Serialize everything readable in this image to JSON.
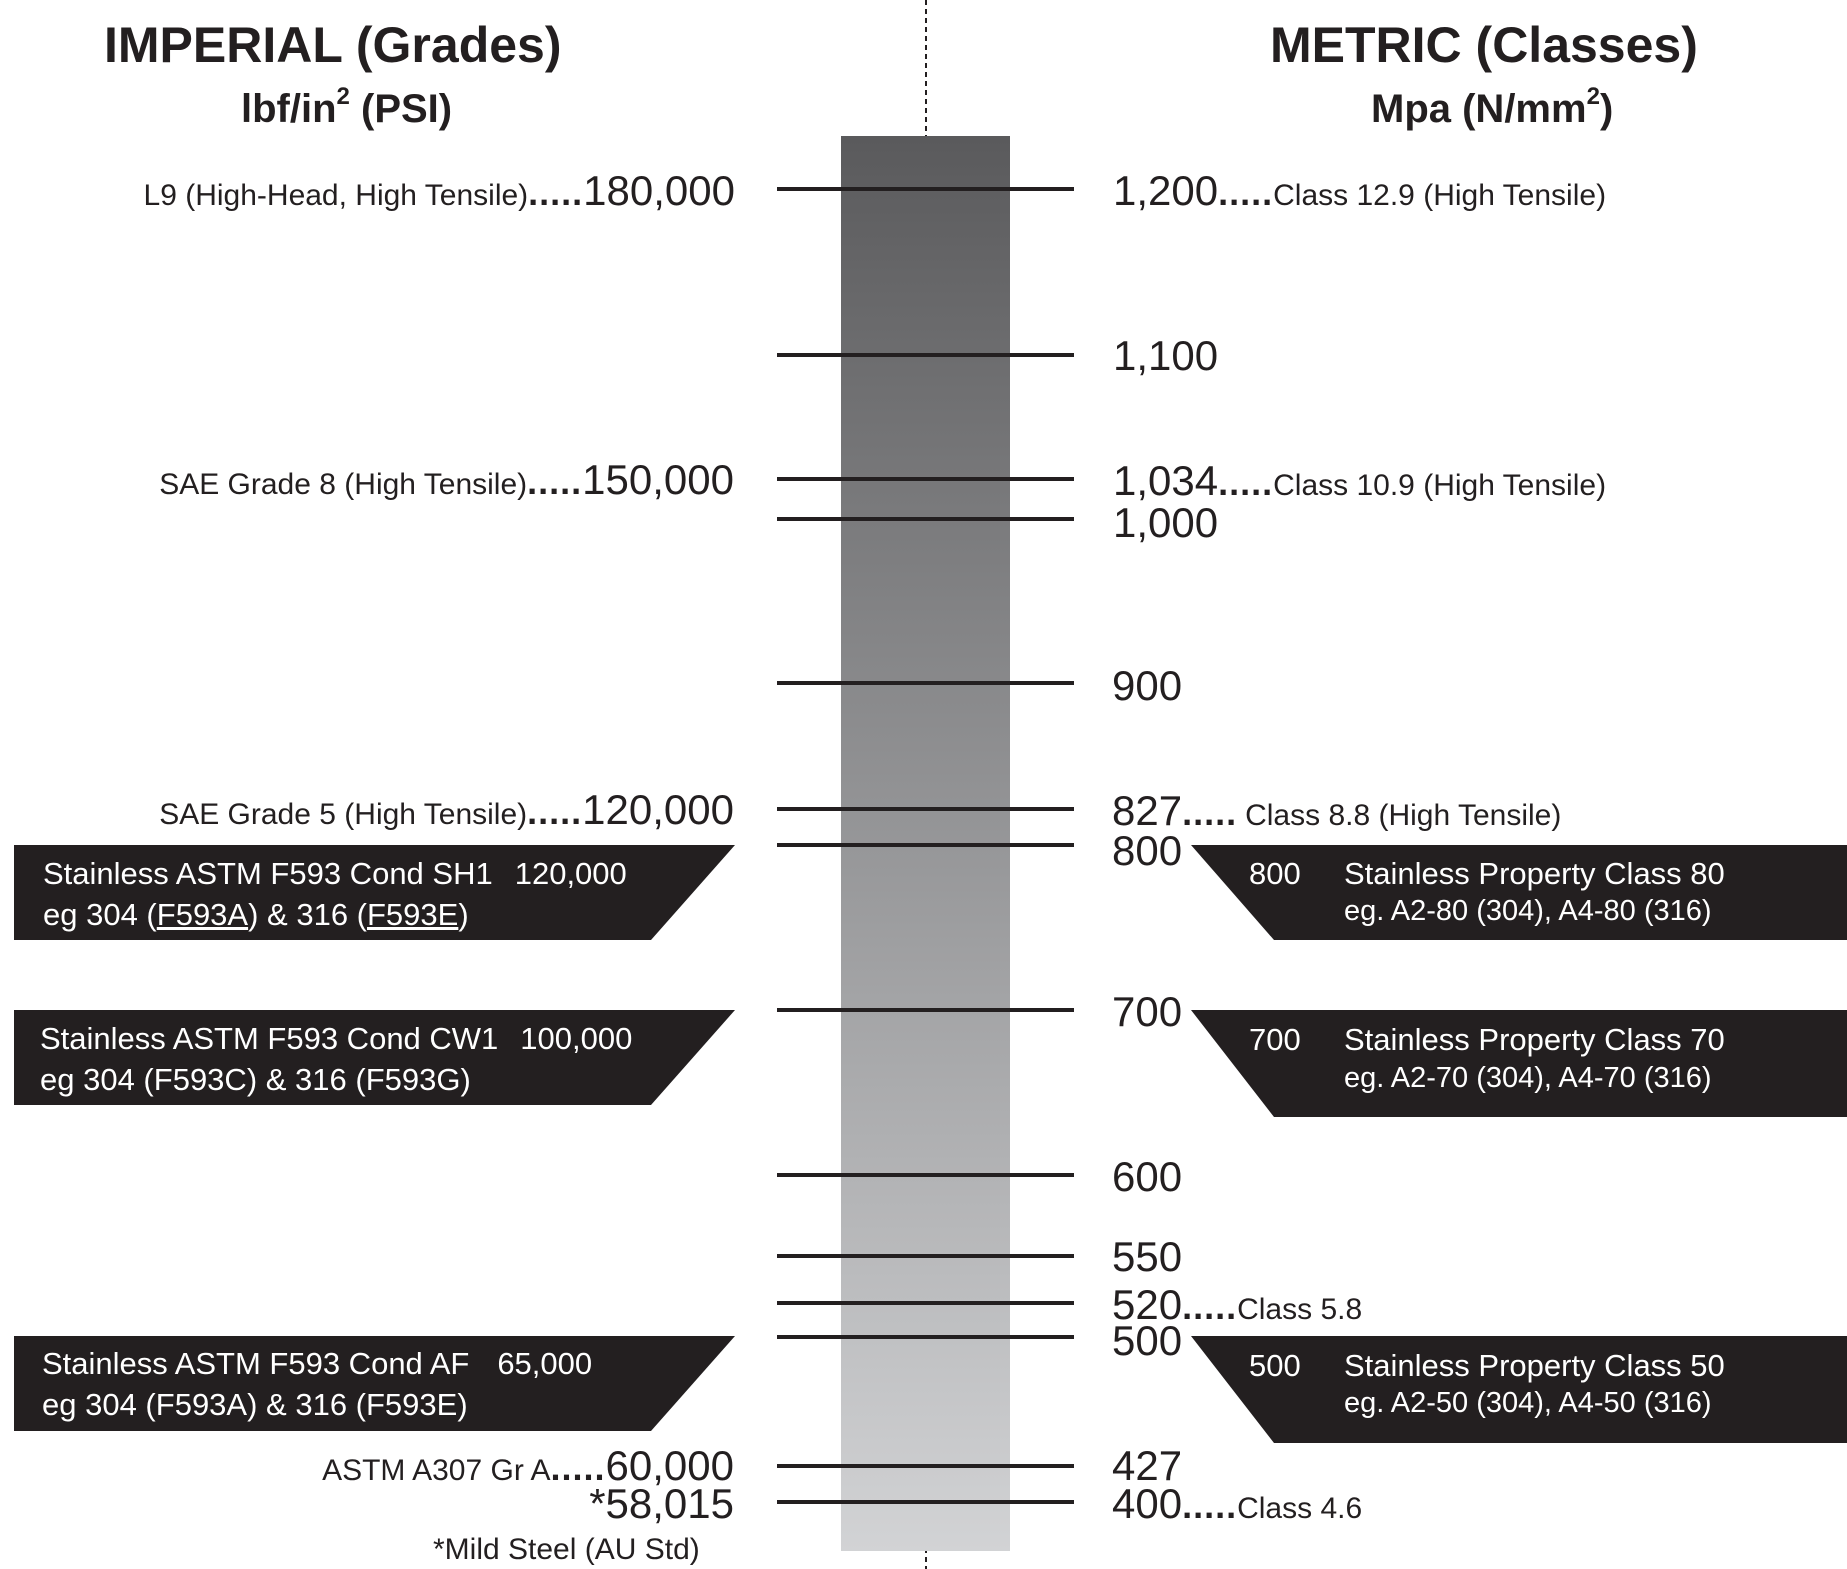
{
  "left_header": {
    "title": "IMPERIAL (Grades)",
    "unit_text": "lbf/in",
    "unit_sup": "2",
    "unit_suffix": " (PSI)"
  },
  "right_header": {
    "title": "METRIC (Classes)",
    "unit_text": "Mpa (N/mm",
    "unit_sup": "2",
    "unit_suffix": ")"
  },
  "scale_ticks": [
    "1,200",
    "1,100",
    "1,034",
    "1,000",
    "900",
    "827",
    "800",
    "700",
    "600",
    "550",
    "520",
    "500",
    "427",
    "400"
  ],
  "imperial_grades": [
    {
      "name": "L9 (High-Head, High Tensile)",
      "dots": ".....",
      "psi": "180,000",
      "mpa_tick": "1,200"
    },
    {
      "name": "SAE Grade 8 (High Tensile)",
      "dots": ".....",
      "psi": "150,000",
      "mpa_tick": "1,034"
    },
    {
      "name": "SAE Grade 5 (High Tensile)",
      "dots": ".....",
      "psi": "120,000",
      "mpa_tick": "827"
    },
    {
      "name": "ASTM A307 Gr A",
      "dots": ".....",
      "psi": "60,000",
      "mpa_tick": "427"
    },
    {
      "name": "",
      "dots": "",
      "psi": "*58,015",
      "mpa_tick": "400"
    }
  ],
  "metric_classes": [
    {
      "value": "1,200",
      "dots": ".....",
      "name": "Class 12.9 (High Tensile)"
    },
    {
      "value": "1,100",
      "dots": "",
      "name": ""
    },
    {
      "value": "1,034",
      "dots": ".....",
      "name": "Class 10.9 (High Tensile)"
    },
    {
      "value": "1,000",
      "dots": "",
      "name": ""
    },
    {
      "value": "900",
      "dots": "",
      "name": ""
    },
    {
      "value": "827",
      "dots": ".....",
      "name": "Class 8.8 (High Tensile)"
    },
    {
      "value": "800",
      "dots": "",
      "name": ""
    },
    {
      "value": "700",
      "dots": "",
      "name": ""
    },
    {
      "value": "600",
      "dots": "",
      "name": ""
    },
    {
      "value": "550",
      "dots": "",
      "name": ""
    },
    {
      "value": "520",
      "dots": ".....",
      "name": "Class 5.8"
    },
    {
      "value": "500",
      "dots": "",
      "name": ""
    },
    {
      "value": "427",
      "dots": "",
      "name": ""
    },
    {
      "value": "400",
      "dots": ".....",
      "name": "Class 4.6"
    }
  ],
  "stainless_imperial": [
    {
      "line1": "Stainless ASTM F593 Cond SH1",
      "psi": "120,000",
      "pre": "eg 304 (",
      "code_a": "F593A",
      "mid": ") & 316 (",
      "code_b": "F593E",
      "post": ")",
      "underlined": true,
      "mpa_tick": "800"
    },
    {
      "line1": "Stainless ASTM F593 Cond CW1",
      "psi": "100,000",
      "pre": "eg 304 (",
      "code_a": "F593C",
      "mid": ") & 316 (",
      "code_b": "F593G",
      "post": ")",
      "underlined": false,
      "mpa_tick": "700"
    },
    {
      "line1": "Stainless ASTM F593 Cond AF",
      "psi": "65,000",
      "pre": "eg 304 (",
      "code_a": "F593A",
      "mid": ") & 316 (",
      "code_b": "F593E",
      "post": ")",
      "underlined": false,
      "mpa_tick": "500"
    }
  ],
  "stainless_metric": [
    {
      "value": "800",
      "title": "Stainless Property Class 80",
      "example": "eg. A2-80 (304), A4-80 (316)"
    },
    {
      "value": "700",
      "title": "Stainless Property Class 70",
      "example": "eg. A2-70 (304), A4-70 (316)"
    },
    {
      "value": "500",
      "title": "Stainless Property Class 50",
      "example": "eg. A2-50 (304), A4-50 (316)"
    }
  ],
  "footnote": "*Mild Steel (AU Std)",
  "colors": {
    "ink": "#231f20",
    "tag_fill": "#231f20",
    "bar_top": "#5a5a5c",
    "bar_bottom": "#d2d3d5"
  }
}
